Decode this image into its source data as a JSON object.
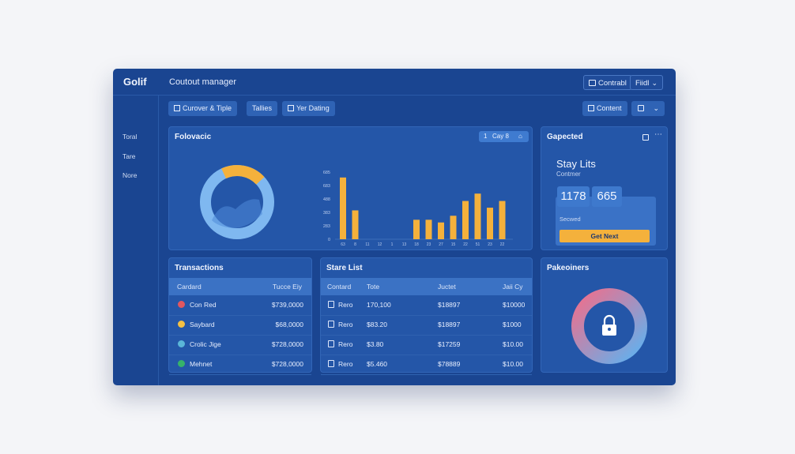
{
  "app": {
    "logo": "Golif",
    "title": "Coutout manager"
  },
  "top_actions": {
    "control_label": "Contrabl",
    "field_label": "Fiidl"
  },
  "sidebar": {
    "items": [
      {
        "label": "Toral"
      },
      {
        "label": "Tare"
      },
      {
        "label": "Nore"
      }
    ]
  },
  "toolbar": {
    "tabs": [
      {
        "label": "Curover & Tiple"
      },
      {
        "label": "Tallies"
      },
      {
        "label": "Yer Dating"
      }
    ],
    "content_label": "Content"
  },
  "overview": {
    "title": "Folovacic",
    "pill_num": "1",
    "pill_label": "Cay 8",
    "donut_fill": 0.2,
    "colors": {
      "donut_bg": "#7fb8f0",
      "donut_accent": "#f4b13c",
      "bar": "#f4b13c"
    },
    "y_ticks": [
      "685",
      "683",
      "488",
      "383",
      "283",
      "0"
    ],
    "x_ticks": [
      "63",
      "8",
      "11",
      "12",
      "1",
      "13",
      "18",
      "23",
      "27",
      "15",
      "22",
      "51",
      "23",
      "22"
    ],
    "bars": [
      0.92,
      0.43,
      0,
      0,
      0,
      0,
      0.29,
      0.29,
      0.25,
      0.35,
      0.57,
      0.68,
      0.47,
      0.57
    ]
  },
  "side_card": {
    "title": "Gapected",
    "heading": "Stay Lits",
    "sub": "Contmer",
    "stat1": "1178",
    "stat2": "665",
    "field_label": "Secwed",
    "cta_label": "Get Next"
  },
  "transactions": {
    "title": "Transactions",
    "col1": "Cardard",
    "col2": "Tucce Eiy",
    "rows": [
      {
        "name": "Con Red",
        "value": "$739,0000",
        "icon": "red-globe-icon",
        "color": "#e0575f"
      },
      {
        "name": "Saybard",
        "value": "$68,0000",
        "icon": "yellow-coin-icon",
        "color": "#f4c043"
      },
      {
        "name": "Crolic Jige",
        "value": "$728,0000",
        "icon": "multicolor-globe-icon",
        "color": "#5bb6d8"
      },
      {
        "name": "Mehnet",
        "value": "$728,0000",
        "icon": "green-check-icon",
        "color": "#36b26b"
      }
    ]
  },
  "share_list": {
    "title": "Stare List",
    "cols": [
      "Contard",
      "Tote",
      "Juctet",
      "Jaii Cy"
    ],
    "rows": [
      {
        "a": "Rero",
        "b": "170,100",
        "c": "$18897",
        "d": "$10000"
      },
      {
        "a": "Rero",
        "b": "$83.20",
        "c": "$18897",
        "d": "$1000"
      },
      {
        "a": "Rero",
        "b": "$3.80",
        "c": "$17259",
        "d": "$10.00"
      },
      {
        "a": "Rero",
        "b": "$5.460",
        "c": "$78889",
        "d": "$10.00"
      }
    ]
  },
  "security": {
    "title": "Pakeoiners",
    "colors": {
      "ring_from": "#ee6f8c",
      "ring_to": "#5fb2f0"
    }
  }
}
